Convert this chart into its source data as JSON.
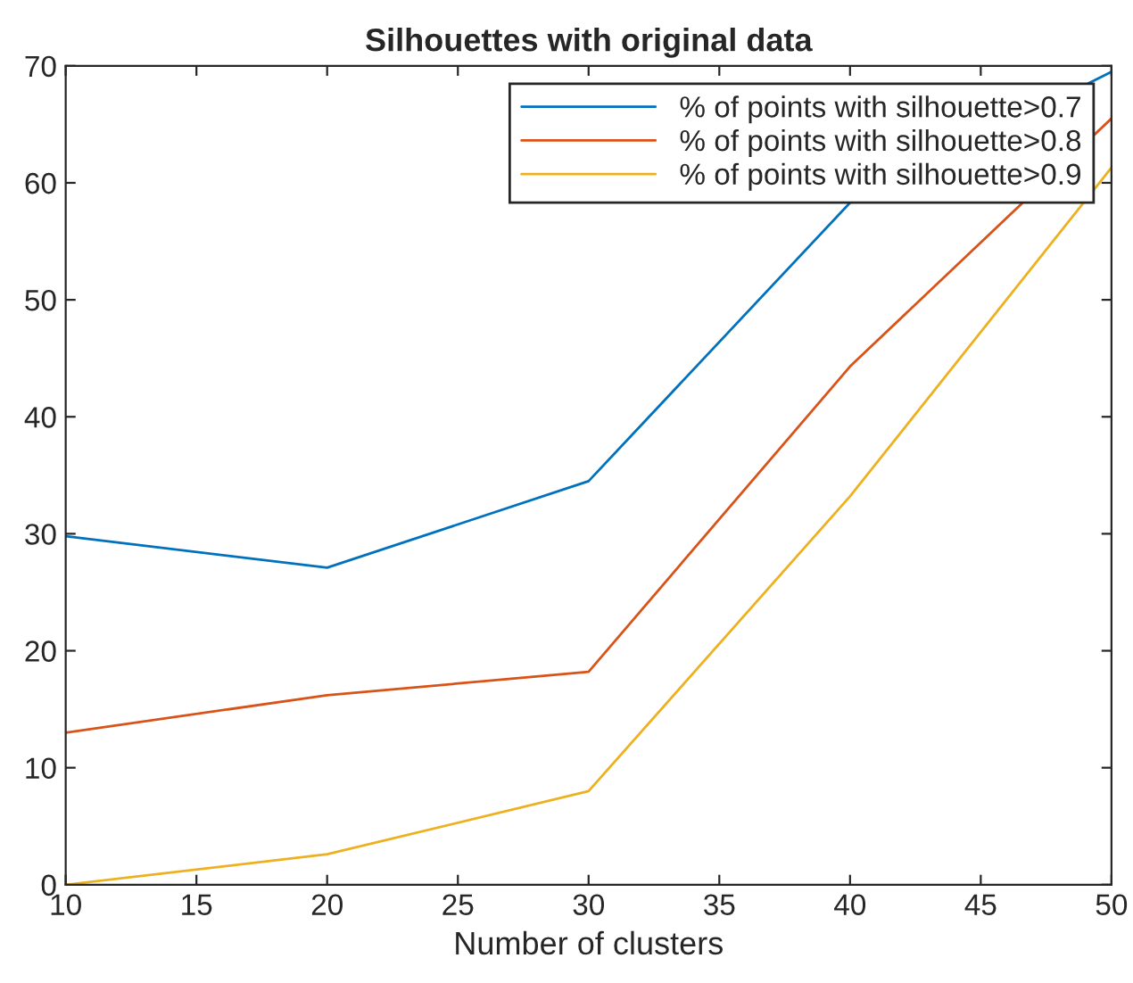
{
  "chart_data": {
    "type": "line",
    "title": "Silhouettes with original data",
    "xlabel": "Number of clusters",
    "x": [
      10,
      20,
      30,
      40,
      50
    ],
    "series": [
      {
        "name": "% of points with silhouette>0.7",
        "color": "#0072bd",
        "values": [
          29.8,
          27.1,
          34.5,
          58.3,
          69.5
        ]
      },
      {
        "name": "% of points with silhouette>0.8",
        "color": "#d95319",
        "values": [
          13.0,
          16.2,
          18.2,
          44.3,
          65.5
        ]
      },
      {
        "name": "% of points with silhouette>0.9",
        "color": "#edb120",
        "values": [
          0,
          2.6,
          8.0,
          33.2,
          61.3
        ]
      }
    ],
    "xlim": [
      10,
      50
    ],
    "xticks": [
      10,
      15,
      20,
      25,
      30,
      35,
      40,
      45,
      50
    ],
    "ylim": [
      0,
      70
    ],
    "yticks": [
      0,
      10,
      20,
      30,
      40,
      50,
      60,
      70
    ],
    "grid": false,
    "legend": "top right"
  }
}
